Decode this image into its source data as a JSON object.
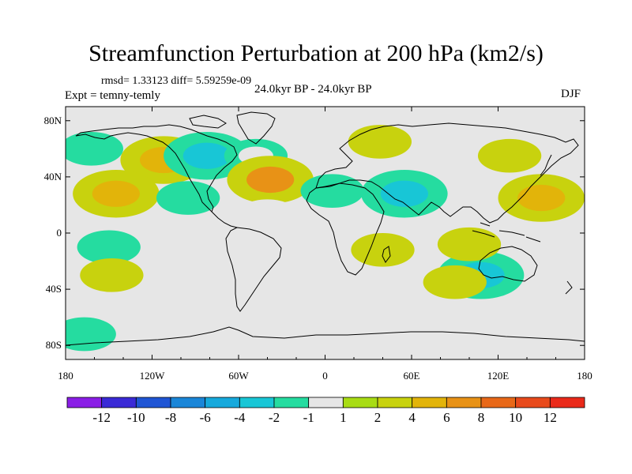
{
  "title": "Streamfunction Perturbation at 200 hPa (km2/s)",
  "stats": "rmsd= 1.33123 diff= 5.59259e-09",
  "expt": "Expt = temny-temly",
  "period": "24.0kyr BP - 24.0kyr BP",
  "season": "DJF",
  "y_ticks": [
    "80N",
    "40N",
    "0",
    "40S",
    "80S"
  ],
  "x_ticks": [
    "180",
    "120W",
    "60W",
    "0",
    "60E",
    "120E",
    "180"
  ],
  "colorbar": {
    "labels": [
      "-12",
      "-10",
      "-8",
      "-6",
      "-4",
      "-2",
      "-1",
      "1",
      "2",
      "4",
      "6",
      "8",
      "10",
      "12"
    ],
    "colors": [
      "#8a1ee6",
      "#3a2ad6",
      "#1f55d4",
      "#1a86d8",
      "#16a9dc",
      "#18c6d6",
      "#25dca0",
      "#e6e6e6",
      "#a8dc14",
      "#c8d20e",
      "#e2b40a",
      "#e89216",
      "#e86818",
      "#e84a1c",
      "#ea2a1a"
    ]
  },
  "chart_data": {
    "type": "map",
    "projection": "cylindrical equidistant",
    "variable": "Streamfunction Perturbation at 200 hPa (km2/s)",
    "lon_range": [
      -180,
      180
    ],
    "lat_range": [
      -90,
      90
    ],
    "contour_levels": [
      -12,
      -10,
      -8,
      -6,
      -4,
      -2,
      -1,
      1,
      2,
      4,
      6,
      8,
      10,
      12
    ],
    "anomalies": [
      {
        "lon": -112,
        "lat": 52,
        "level": 2,
        "peak": 4
      },
      {
        "lon": -145,
        "lat": 28,
        "level": 2,
        "peak": 4
      },
      {
        "lon": -162,
        "lat": 60,
        "level": -2,
        "peak": -2
      },
      {
        "lon": -82,
        "lat": 55,
        "level": -2,
        "peak": -4
      },
      {
        "lon": -95,
        "lat": 25,
        "level": -2,
        "peak": -2
      },
      {
        "lon": -48,
        "lat": 55,
        "level": -2,
        "peak": -1
      },
      {
        "lon": -38,
        "lat": 38,
        "level": 2,
        "peak": 6
      },
      {
        "lon": -40,
        "lat": 12,
        "level": -1,
        "peak": -1
      },
      {
        "lon": 5,
        "lat": 30,
        "level": -2,
        "peak": -2
      },
      {
        "lon": 38,
        "lat": 65,
        "level": 2,
        "peak": 2
      },
      {
        "lon": 55,
        "lat": 28,
        "level": -2,
        "peak": -4
      },
      {
        "lon": 128,
        "lat": 55,
        "level": 2,
        "peak": 2
      },
      {
        "lon": 150,
        "lat": 25,
        "level": 2,
        "peak": 4
      },
      {
        "lon": -150,
        "lat": -10,
        "level": -2,
        "peak": -2
      },
      {
        "lon": -148,
        "lat": -30,
        "level": 2,
        "peak": 2
      },
      {
        "lon": 40,
        "lat": -12,
        "level": 2,
        "peak": 2
      },
      {
        "lon": 108,
        "lat": -30,
        "level": -2,
        "peak": -4
      },
      {
        "lon": 100,
        "lat": -8,
        "level": 2,
        "peak": 2
      },
      {
        "lon": 90,
        "lat": -35,
        "level": 2,
        "peak": 2
      },
      {
        "lon": -167,
        "lat": -72,
        "level": -2,
        "peak": -2
      },
      {
        "lon": 178,
        "lat": -72,
        "level": -1,
        "peak": -1
      }
    ]
  }
}
